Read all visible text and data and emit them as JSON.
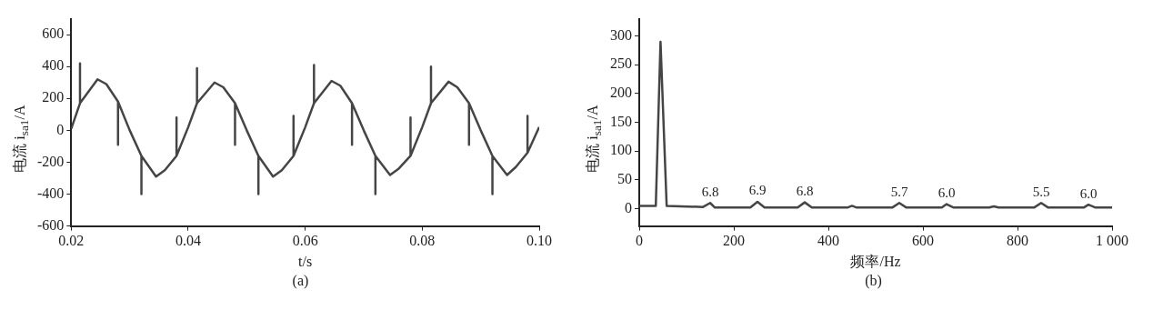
{
  "chart_data": [
    {
      "type": "line",
      "xlabel": "t/s",
      "ylabel": "电流  i$_{sa1}$/A",
      "annotations": [
        "(a)"
      ],
      "color": "#454545",
      "marker": "none",
      "line_style": "solid",
      "grid": false,
      "legend": false,
      "x": [
        0.02,
        0.0215,
        0.0215,
        0.0215,
        0.0245,
        0.026,
        0.028,
        0.028,
        0.028,
        0.03,
        0.032,
        0.032,
        0.032,
        0.0345,
        0.036,
        0.038,
        0.038,
        0.038,
        0.04,
        0.0415,
        0.0415,
        0.0415,
        0.0445,
        0.046,
        0.048,
        0.048,
        0.048,
        0.05,
        0.052,
        0.052,
        0.052,
        0.0545,
        0.056,
        0.058,
        0.058,
        0.058,
        0.06,
        0.0615,
        0.0615,
        0.0615,
        0.0645,
        0.066,
        0.068,
        0.068,
        0.068,
        0.07,
        0.072,
        0.072,
        0.072,
        0.0745,
        0.076,
        0.078,
        0.078,
        0.078,
        0.08,
        0.0815,
        0.0815,
        0.0815,
        0.0845,
        0.086,
        0.088,
        0.088,
        0.088,
        0.09,
        0.092,
        0.092,
        0.092,
        0.0945,
        0.096,
        0.098,
        0.098,
        0.098,
        0.1
      ],
      "values": [
        10,
        170,
        420,
        170,
        320,
        290,
        180,
        -90,
        180,
        0,
        -160,
        -400,
        -160,
        -290,
        -250,
        -160,
        80,
        -160,
        20,
        170,
        390,
        170,
        300,
        270,
        170,
        -90,
        170,
        0,
        -160,
        -400,
        -160,
        -290,
        -250,
        -160,
        90,
        -160,
        20,
        170,
        410,
        170,
        310,
        280,
        170,
        -90,
        170,
        0,
        -160,
        -400,
        -160,
        -280,
        -240,
        -160,
        80,
        -160,
        20,
        170,
        400,
        170,
        305,
        270,
        170,
        -90,
        170,
        0,
        -160,
        -400,
        -160,
        -280,
        -230,
        -140,
        90,
        -140,
        20
      ],
      "xlim": [
        0.02,
        0.1
      ],
      "xticks": [
        0.02,
        0.04,
        0.06,
        0.08,
        {
          "value": 0.1,
          "label": "0.10"
        }
      ],
      "ylim": [
        -600,
        700
      ],
      "yticks": [
        -600,
        -400,
        -200,
        0,
        200,
        400,
        600
      ]
    },
    {
      "type": "line",
      "xlabel": "频率/Hz",
      "ylabel": "电流  i$_{sa1}$/A",
      "color": "#454545",
      "marker": "none",
      "line_style": "solid",
      "grid": false,
      "legend": false,
      "x": [
        0,
        35,
        45,
        58,
        135,
        150,
        160,
        235,
        250,
        265,
        335,
        350,
        365,
        440,
        450,
        460,
        535,
        550,
        565,
        640,
        650,
        665,
        740,
        750,
        760,
        835,
        850,
        865,
        940,
        950,
        965,
        1000
      ],
      "values": [
        5,
        5,
        290,
        5,
        3,
        10,
        2,
        2,
        12,
        2,
        2,
        11,
        2,
        2,
        5,
        2,
        2,
        10,
        2,
        2,
        8,
        2,
        2,
        4,
        2,
        2,
        10,
        2,
        2,
        7,
        2,
        2
      ],
      "annotations": [
        "(b)",
        {
          "text": "6.8",
          "x": 150,
          "y": 10
        },
        {
          "text": "6.9",
          "x": 250,
          "y": 12
        },
        {
          "text": "6.8",
          "x": 350,
          "y": 11
        },
        {
          "text": "5.7",
          "x": 550,
          "y": 10
        },
        {
          "text": "6.0",
          "x": 650,
          "y": 8
        },
        {
          "text": "5.5",
          "x": 850,
          "y": 10
        },
        {
          "text": "6.0",
          "x": 950,
          "y": 7
        }
      ],
      "xlim": [
        0,
        1000
      ],
      "xticks": [
        0,
        200,
        400,
        600,
        800,
        {
          "value": 1000,
          "label": "1 000"
        }
      ],
      "ylim": [
        -30,
        330
      ],
      "yticks": [
        0,
        50,
        100,
        150,
        200,
        250,
        300
      ]
    }
  ]
}
